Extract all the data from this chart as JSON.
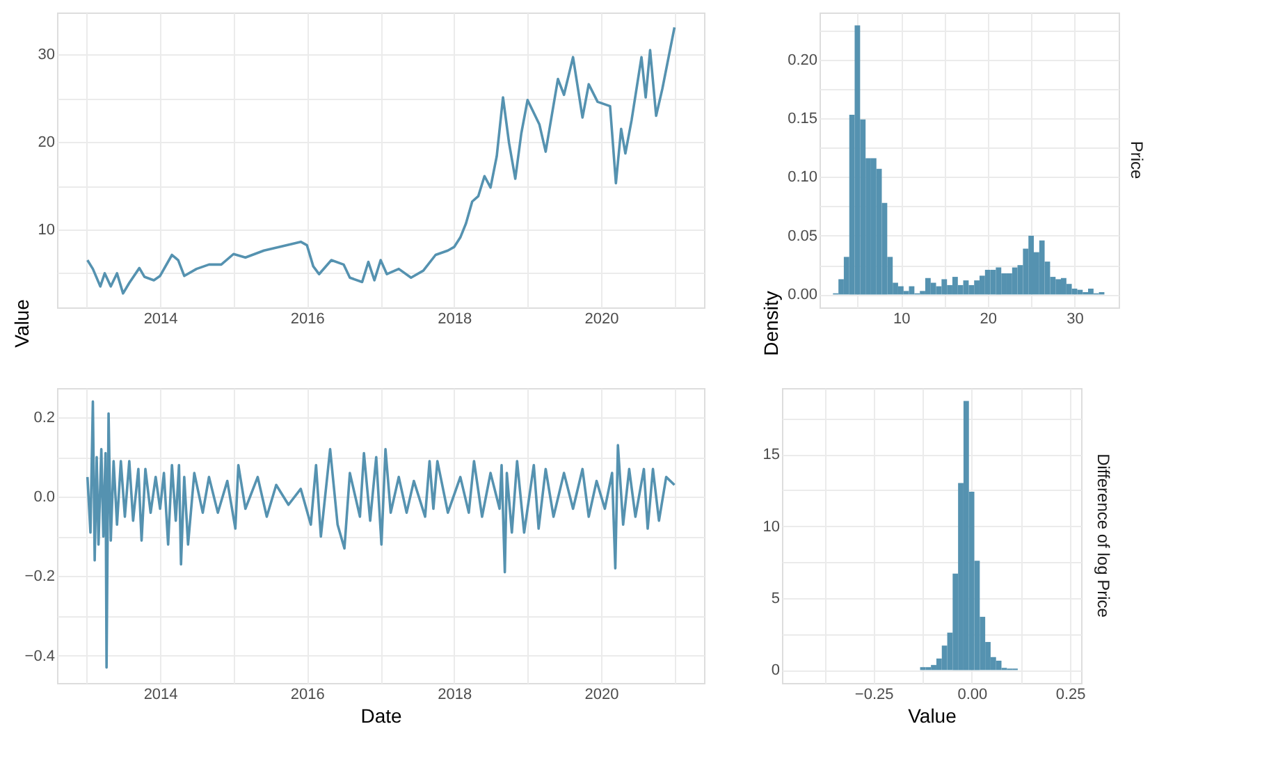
{
  "chart_data": [
    {
      "type": "line",
      "ylabel": "Value",
      "color": "#5592b0",
      "grid": true,
      "x": [
        "2013-01-05",
        "2013-02-01",
        "2013-03-10",
        "2013-04-01",
        "2013-05-01",
        "2013-06-01",
        "2013-07-01",
        "2013-08-01",
        "2013-09-20",
        "2013-10-15",
        "2013-12-01",
        "2014-01-01",
        "2014-03-01",
        "2014-04-01",
        "2014-05-01",
        "2014-07-01",
        "2014-09-01",
        "2014-11-01",
        "2015-01-01",
        "2015-03-01",
        "2015-06-01",
        "2015-09-01",
        "2015-12-01",
        "2016-01-01",
        "2016-02-01",
        "2016-03-01",
        "2016-05-01",
        "2016-07-01",
        "2016-08-01",
        "2016-10-01",
        "2016-11-01",
        "2016-12-01",
        "2017-01-01",
        "2017-02-01",
        "2017-04-01",
        "2017-06-01",
        "2017-08-01",
        "2017-10-01",
        "2017-12-01",
        "2018-01-01",
        "2018-02-01",
        "2018-03-01",
        "2018-04-01",
        "2018-05-01",
        "2018-06-01",
        "2018-07-01",
        "2018-08-01",
        "2018-09-01",
        "2018-10-01",
        "2018-11-01",
        "2018-12-01",
        "2019-01-01",
        "2019-03-01",
        "2019-04-01",
        "2019-05-01",
        "2019-06-01",
        "2019-07-01",
        "2019-08-15",
        "2019-10-01",
        "2019-11-01",
        "2019-12-15",
        "2020-02-15",
        "2020-03-15",
        "2020-04-10",
        "2020-05-01",
        "2020-06-01",
        "2020-07-20",
        "2020-08-10",
        "2020-09-01",
        "2020-10-01",
        "2020-11-01",
        "2020-12-31"
      ],
      "values": [
        6.5,
        5.5,
        3.5,
        5.0,
        3.5,
        5.0,
        2.7,
        3.9,
        5.6,
        4.6,
        4.2,
        4.7,
        7.1,
        6.5,
        4.7,
        5.5,
        6.0,
        6.0,
        7.2,
        6.8,
        7.6,
        8.1,
        8.6,
        8.2,
        5.8,
        4.9,
        6.5,
        6.0,
        4.5,
        4.0,
        6.3,
        4.2,
        6.5,
        4.9,
        5.5,
        4.5,
        5.3,
        7.1,
        7.6,
        8.0,
        9.1,
        10.7,
        13.2,
        13.8,
        16.1,
        14.8,
        18.4,
        25.1,
        19.9,
        15.8,
        21.0,
        24.8,
        22.0,
        18.9,
        23.0,
        27.2,
        25.4,
        29.7,
        22.8,
        26.6,
        24.6,
        24.1,
        15.3,
        21.5,
        18.7,
        22.5,
        29.7,
        25.1,
        30.5,
        23.0,
        26.1,
        33.1
      ],
      "xlim": [
        "2012-08-07",
        "2021-05-27"
      ],
      "xticks": [
        {
          "value": "2013-01-01",
          "label": null
        },
        {
          "value": "2014-01-01",
          "label": "2014"
        },
        {
          "value": "2015-01-01",
          "label": null
        },
        {
          "value": "2016-01-01",
          "label": "2016"
        },
        {
          "value": "2017-01-01",
          "label": null
        },
        {
          "value": "2018-01-01",
          "label": "2018"
        },
        {
          "value": "2019-01-01",
          "label": null
        },
        {
          "value": "2020-01-01",
          "label": "2020"
        },
        {
          "value": "2021-01-01",
          "label": null
        }
      ],
      "ylim": [
        1.1,
        34.8
      ],
      "yticks": [
        {
          "value": 5,
          "label": null
        },
        10,
        {
          "value": 15,
          "label": null
        },
        20,
        {
          "value": 25,
          "label": null
        },
        30
      ]
    },
    {
      "type": "histogram",
      "title": "Price",
      "ylabel": "Density",
      "color": "#5592b0",
      "grid": true,
      "bins": [
        2.15,
        2.78,
        3.4,
        4.03,
        4.65,
        5.28,
        5.91,
        6.53,
        7.16,
        7.78,
        8.41,
        9.04,
        9.66,
        10.29,
        10.91,
        11.54,
        12.17,
        12.79,
        13.42,
        14.04,
        14.67,
        15.3,
        15.92,
        16.55,
        17.17,
        17.8,
        18.43,
        19.05,
        19.68,
        20.3,
        20.93,
        21.56,
        22.18,
        22.81,
        23.43,
        24.06,
        24.69,
        25.31,
        25.94,
        26.56,
        27.19,
        27.82,
        28.44,
        29.07,
        29.69,
        30.32,
        30.95,
        31.57,
        32.2,
        32.82,
        33.45
      ],
      "values": [
        0.001,
        0.013,
        0.032,
        0.153,
        0.229,
        0.149,
        0.116,
        0.116,
        0.107,
        0.078,
        0.032,
        0.01,
        0.007,
        0.003,
        0.007,
        0.001,
        0.003,
        0.014,
        0.01,
        0.007,
        0.013,
        0.008,
        0.015,
        0.008,
        0.012,
        0.008,
        0.012,
        0.016,
        0.021,
        0.021,
        0.023,
        0.018,
        0.018,
        0.023,
        0.025,
        0.039,
        0.05,
        0.036,
        0.046,
        0.028,
        0.015,
        0.013,
        0.014,
        0.009,
        0.005,
        0.004,
        0.002,
        0.005,
        0.001,
        0.002
      ],
      "xlim": [
        0.6,
        35.1
      ],
      "xticks": [
        {
          "value": 5,
          "label": null
        },
        10,
        {
          "value": 15,
          "label": null
        },
        20,
        {
          "value": 25,
          "label": null
        },
        30
      ],
      "ylim": [
        -0.011,
        0.24
      ],
      "yticks": [
        {
          "value": 0,
          "label": "0.00"
        },
        {
          "value": 0.025,
          "label": null
        },
        {
          "value": 0.05,
          "label": "0.05"
        },
        {
          "value": 0.075,
          "label": null
        },
        {
          "value": 0.1,
          "label": "0.10"
        },
        {
          "value": 0.125,
          "label": null
        },
        {
          "value": 0.15,
          "label": "0.15"
        },
        {
          "value": 0.175,
          "label": null
        },
        {
          "value": 0.2,
          "label": "0.20"
        },
        {
          "value": 0.225,
          "label": null
        }
      ]
    },
    {
      "type": "line",
      "xlabel": "Date",
      "color": "#5592b0",
      "grid": true,
      "x": [
        "2013-01-05",
        "2013-01-20",
        "2013-02-01",
        "2013-02-10",
        "2013-02-20",
        "2013-03-01",
        "2013-03-15",
        "2013-03-25",
        "2013-04-05",
        "2013-04-10",
        "2013-04-20",
        "2013-05-01",
        "2013-05-15",
        "2013-06-01",
        "2013-06-20",
        "2013-07-10",
        "2013-08-01",
        "2013-08-20",
        "2013-09-15",
        "2013-10-01",
        "2013-10-20",
        "2013-11-15",
        "2013-12-10",
        "2014-01-01",
        "2014-01-20",
        "2014-02-10",
        "2014-03-01",
        "2014-03-20",
        "2014-04-05",
        "2014-04-15",
        "2014-05-01",
        "2014-05-20",
        "2014-06-20",
        "2014-08-01",
        "2014-09-01",
        "2014-10-15",
        "2014-12-01",
        "2015-01-10",
        "2015-01-25",
        "2015-03-01",
        "2015-05-01",
        "2015-06-15",
        "2015-08-01",
        "2015-10-01",
        "2015-12-01",
        "2016-01-20",
        "2016-02-15",
        "2016-03-10",
        "2016-04-25",
        "2016-06-01",
        "2016-07-05",
        "2016-08-01",
        "2016-09-20",
        "2016-10-10",
        "2016-11-10",
        "2016-12-10",
        "2017-01-05",
        "2017-01-25",
        "2017-02-20",
        "2017-04-01",
        "2017-05-10",
        "2017-06-15",
        "2017-08-10",
        "2017-09-01",
        "2017-09-20",
        "2017-10-10",
        "2017-12-01",
        "2018-02-01",
        "2018-03-15",
        "2018-04-10",
        "2018-05-20",
        "2018-07-01",
        "2018-08-15",
        "2018-08-25",
        "2018-09-10",
        "2018-09-20",
        "2018-10-15",
        "2018-11-10",
        "2018-12-15",
        "2019-02-01",
        "2019-02-25",
        "2019-04-01",
        "2019-05-10",
        "2019-07-01",
        "2019-08-15",
        "2019-10-01",
        "2019-11-01",
        "2019-12-10",
        "2020-01-20",
        "2020-02-25",
        "2020-03-12",
        "2020-03-25",
        "2020-04-20",
        "2020-05-20",
        "2020-06-20",
        "2020-08-01",
        "2020-08-20",
        "2020-09-15",
        "2020-10-15",
        "2020-11-20",
        "2020-12-31"
      ],
      "values": [
        0.05,
        -0.09,
        0.24,
        -0.16,
        0.1,
        -0.12,
        0.12,
        -0.1,
        0.11,
        -0.43,
        0.21,
        -0.11,
        0.09,
        -0.07,
        0.09,
        -0.05,
        0.09,
        -0.06,
        0.07,
        -0.11,
        0.07,
        -0.04,
        0.05,
        -0.03,
        0.06,
        -0.12,
        0.08,
        -0.06,
        0.08,
        -0.17,
        0.05,
        -0.12,
        0.06,
        -0.04,
        0.05,
        -0.04,
        0.04,
        -0.08,
        0.08,
        -0.03,
        0.05,
        -0.05,
        0.03,
        -0.02,
        0.02,
        -0.07,
        0.08,
        -0.1,
        0.12,
        -0.07,
        -0.13,
        0.06,
        -0.05,
        0.11,
        -0.06,
        0.1,
        -0.12,
        0.12,
        -0.04,
        0.05,
        -0.04,
        0.04,
        -0.05,
        0.09,
        -0.03,
        0.09,
        -0.04,
        0.05,
        -0.04,
        0.09,
        -0.05,
        0.06,
        -0.03,
        0.08,
        -0.19,
        0.06,
        -0.09,
        0.09,
        -0.09,
        0.08,
        -0.08,
        0.07,
        -0.05,
        0.06,
        -0.03,
        0.07,
        -0.05,
        0.04,
        -0.03,
        0.06,
        -0.18,
        0.13,
        -0.07,
        0.07,
        -0.05,
        0.07,
        -0.08,
        0.07,
        -0.06,
        0.05,
        0.03
      ],
      "xlim": [
        "2012-08-07",
        "2021-05-27"
      ],
      "xticks": [
        {
          "value": "2013-01-01",
          "label": null
        },
        {
          "value": "2014-01-01",
          "label": "2014"
        },
        {
          "value": "2015-01-01",
          "label": null
        },
        {
          "value": "2016-01-01",
          "label": "2016"
        },
        {
          "value": "2017-01-01",
          "label": null
        },
        {
          "value": "2018-01-01",
          "label": "2018"
        },
        {
          "value": "2019-01-01",
          "label": null
        },
        {
          "value": "2020-01-01",
          "label": "2020"
        },
        {
          "value": "2021-01-01",
          "label": null
        }
      ],
      "ylim": [
        -0.469,
        0.274
      ],
      "yticks": [
        {
          "value": -0.4,
          "label": "−0.4"
        },
        {
          "value": -0.3,
          "label": null
        },
        {
          "value": -0.2,
          "label": "−0.2"
        },
        {
          "value": -0.1,
          "label": null
        },
        {
          "value": 0,
          "label": "0.0"
        },
        {
          "value": 0.1,
          "label": null
        },
        {
          "value": 0.2,
          "label": "0.2"
        }
      ]
    },
    {
      "type": "histogram",
      "title": "Difference of log Price",
      "xlabel": "Value",
      "color": "#5592b0",
      "grid": true,
      "bins": [
        -0.449,
        -0.4352,
        -0.4214,
        -0.4076,
        -0.3938,
        -0.38,
        -0.3662,
        -0.3524,
        -0.3386,
        -0.3248,
        -0.311,
        -0.2972,
        -0.2834,
        -0.2696,
        -0.2558,
        -0.242,
        -0.2282,
        -0.2144,
        -0.2006,
        -0.1868,
        -0.173,
        -0.1592,
        -0.1454,
        -0.1316,
        -0.1178,
        -0.104,
        -0.0902,
        -0.0764,
        -0.0626,
        -0.0488,
        -0.035,
        -0.0212,
        -0.0074,
        0.0064,
        0.0202,
        0.034,
        0.0478,
        0.0616,
        0.0754,
        0.0892,
        0.103,
        0.1168,
        0.1306,
        0.1444,
        0.1582,
        0.172,
        0.1858,
        0.1996,
        0.2134,
        0.2272,
        0.241
      ],
      "values": [
        0,
        0,
        0,
        0,
        0,
        0,
        0,
        0,
        0,
        0,
        0,
        0,
        0,
        0,
        0,
        0,
        0,
        0,
        0,
        0,
        0,
        0,
        0,
        0.2,
        0.2,
        0.35,
        0.8,
        1.7,
        2.6,
        6.7,
        13.0,
        18.7,
        12.4,
        7.6,
        3.7,
        1.95,
        0.9,
        0.65,
        0.15,
        0.1,
        0.1,
        0,
        0,
        0,
        0,
        0,
        0,
        0,
        0,
        0
      ],
      "xlim": [
        -0.483,
        0.278
      ],
      "xticks": [
        {
          "value": -0.375,
          "label": null
        },
        {
          "value": -0.25,
          "label": "−0.25"
        },
        {
          "value": -0.125,
          "label": null
        },
        {
          "value": 0,
          "label": "0.00"
        },
        {
          "value": 0.125,
          "label": null
        },
        {
          "value": 0.25,
          "label": "0.25"
        }
      ],
      "ylim": [
        -0.9,
        19.6
      ],
      "yticks": [
        0,
        {
          "value": 2.5,
          "label": null
        },
        5,
        {
          "value": 7.5,
          "label": null
        },
        10,
        {
          "value": 12.5,
          "label": null
        },
        15,
        {
          "value": 17.5,
          "label": null
        }
      ]
    }
  ]
}
